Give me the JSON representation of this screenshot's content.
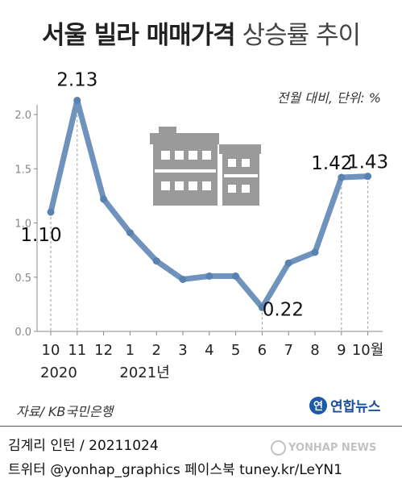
{
  "header": {
    "title_bold": "서울 빌라 매매가격",
    "title_light": "상승률 추이",
    "unit_note": "전월 대비, 단위: %"
  },
  "chart_data": {
    "type": "line",
    "title": "서울 빌라 매매가격 상승률 추이",
    "x": [
      "10",
      "11",
      "12",
      "1",
      "2",
      "3",
      "4",
      "5",
      "6",
      "7",
      "8",
      "9",
      "10월"
    ],
    "year_labels": [
      {
        "at": "10",
        "label": "2020"
      },
      {
        "at": "1",
        "label": "2021년"
      }
    ],
    "series": [
      {
        "values": [
          1.1,
          2.13,
          1.22,
          0.91,
          0.65,
          0.48,
          0.51,
          0.51,
          0.22,
          0.63,
          0.73,
          1.42,
          1.43
        ]
      }
    ],
    "data_labels": [
      {
        "index": 0,
        "text": "1.10"
      },
      {
        "index": 1,
        "text": "2.13"
      },
      {
        "index": 8,
        "text": "0.22"
      },
      {
        "index": 11,
        "text": "1.42"
      },
      {
        "index": 12,
        "text": "1.43"
      }
    ],
    "yticks": [
      "0.0",
      "0.5",
      "1.0",
      "1.5",
      "2.0"
    ],
    "ylim": [
      0,
      2.2
    ],
    "grid": false,
    "line_color": "#6f93bc",
    "marker_color": "#5a82b0"
  },
  "footer": {
    "source": "자료/ KB국민은행",
    "logo_text": "연합뉴스",
    "credit": "김계리 인턴 / 20211024",
    "social": "트위터 @yonhap_graphics  페이스북 tuney.kr/LeYN1",
    "watermark": "YONHAP NEWS"
  },
  "icons": [
    "building-icon"
  ]
}
